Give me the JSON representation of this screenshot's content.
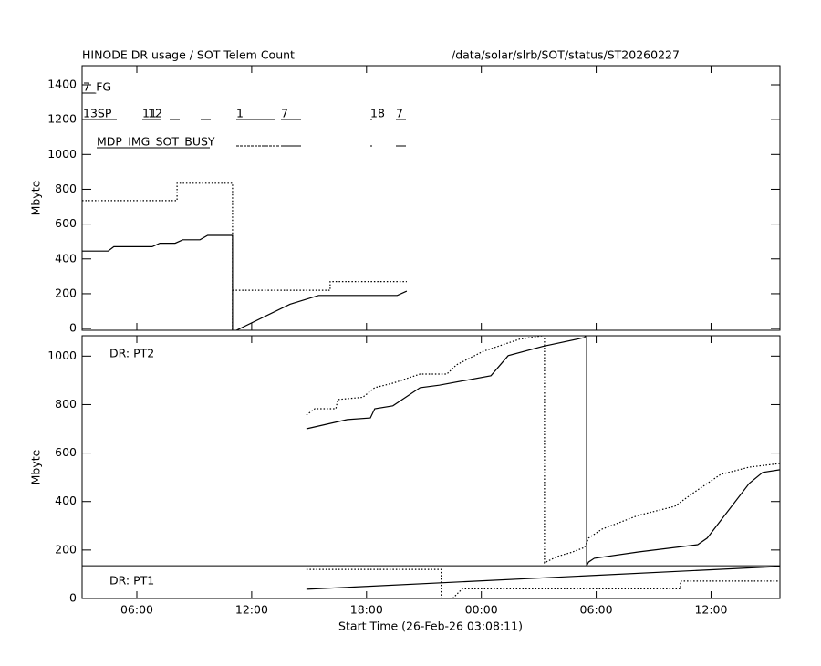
{
  "chart_data": [
    {
      "type": "line",
      "title": "HINODE DR usage / SOT Telem Count",
      "subtitle": "/data/solar/slrb/SOT/status/ST20260227",
      "ylabel": "Mbyte",
      "annotations": [
        "7_FG",
        "13SP",
        "11",
        "12",
        "1",
        "7",
        "18",
        "7",
        "MDP_IMG_SOT_BUSY"
      ],
      "xlim": [
        3.14,
        39.6
      ],
      "ylim": [
        -10,
        1510
      ],
      "xticks": [
        6,
        12,
        18,
        24,
        30,
        36
      ],
      "yticks": [
        0,
        200,
        400,
        600,
        800,
        1000,
        1200,
        1400
      ],
      "series": [
        {
          "color": "#000000",
          "style": "solid",
          "x": [
            3.14,
            4.5,
            4.8,
            6.8,
            7.2,
            8.0,
            8.4,
            9.3,
            9.7,
            11.0,
            11.0,
            11.1,
            11.2,
            14.0,
            15.5,
            19.6,
            20.1
          ],
          "values": [
            445,
            445,
            470,
            470,
            490,
            490,
            510,
            510,
            535,
            535,
            -10,
            null,
            -10,
            140,
            190,
            190,
            215
          ]
        },
        {
          "color": "#000000",
          "style": "dotted",
          "x": [
            3.14,
            8.1,
            8.1,
            11.0,
            11.0,
            11.0,
            11.0,
            16.1,
            16.1,
            20.1
          ],
          "values": [
            735,
            735,
            835,
            835,
            -10,
            null,
            220,
            220,
            270,
            270
          ]
        }
      ]
    },
    {
      "type": "line",
      "xlabel": "Start Time (26-Feb-26 03:08:11)",
      "ylabel": "Mbyte",
      "annotations": [
        "DR: PT2",
        "DR: PT1"
      ],
      "xlim": [
        3.14,
        39.6
      ],
      "ylim": [
        0,
        1084
      ],
      "xticks": [
        {
          "value": 6,
          "label": "06:00"
        },
        {
          "value": 12,
          "label": "12:00"
        },
        {
          "value": 18,
          "label": "18:00"
        },
        {
          "value": 24,
          "label": "00:00"
        },
        {
          "value": 30,
          "label": "06:00"
        },
        {
          "value": 36,
          "label": "12:00"
        }
      ],
      "yticks": [
        0,
        200,
        400,
        600,
        800,
        1000
      ],
      "hline": 135,
      "series": [
        {
          "color": "#000000",
          "style": "solid",
          "x": [
            14.86,
            17.0,
            18.2,
            18.43,
            19.38,
            20.8,
            21.8,
            24.5,
            25.4,
            27.2,
            29.4,
            29.5,
            29.5,
            29.6,
            29.9,
            32.2,
            35.3,
            35.8,
            38.0,
            38.7,
            39.6
          ],
          "values": [
            700,
            738,
            745,
            783,
            795,
            870,
            880,
            919,
            1002,
            1040,
            1077,
            1100,
            135,
            150,
            166,
            192,
            222,
            249,
            475,
            520,
            531
          ]
        },
        {
          "color": "#000000",
          "style": "dotted",
          "x": [
            14.86,
            15.3,
            16.4,
            16.5,
            17.8,
            18.43,
            19.4,
            20.8,
            22.2,
            22.7,
            24.1,
            26.0,
            27.3,
            27.3,
            27.95,
            28.7,
            29.4,
            29.6,
            30.3,
            32.2,
            34.1,
            35.1,
            36.5,
            38.0,
            39.6
          ],
          "values": [
            757,
            783,
            783,
            821,
            830,
            870,
            889,
            926,
            926,
            964,
            1020,
            1070,
            1085,
            147,
            173,
            190,
            211,
            249,
            286,
            343,
            380,
            437,
            512,
            542,
            557
          ]
        },
        {
          "color": "#000000",
          "style": "solid",
          "x": [
            14.86,
            39.6
          ],
          "values": [
            38,
            132
          ]
        },
        {
          "color": "#000000",
          "style": "dotted",
          "x": [
            14.86,
            21.9,
            21.9,
            22.5,
            23.0,
            34.4,
            34.4,
            39.6
          ],
          "values": [
            120,
            120,
            0,
            0,
            40,
            40,
            72,
            72
          ]
        }
      ]
    }
  ]
}
